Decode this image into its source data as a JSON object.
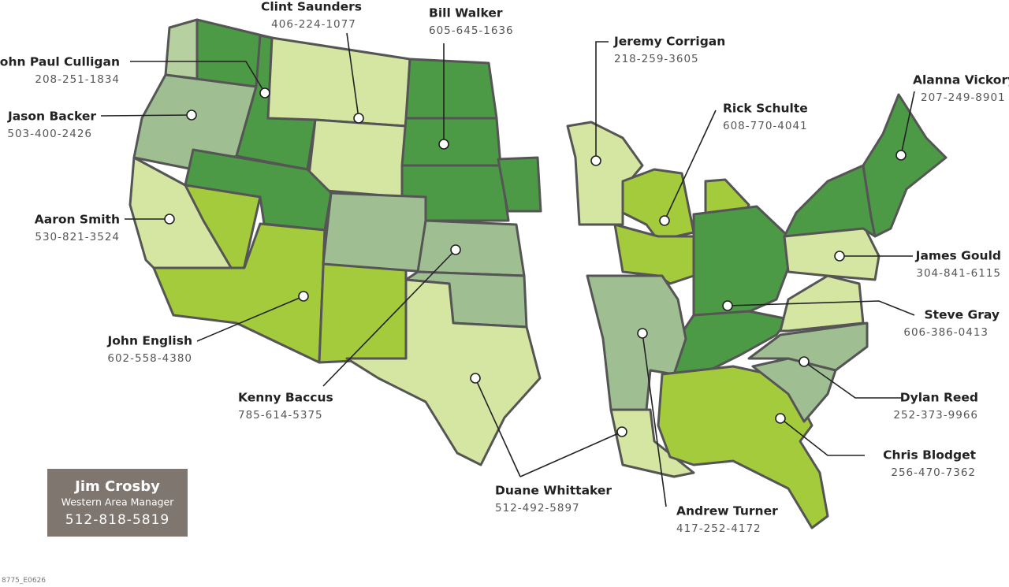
{
  "reps": [
    {
      "name": "Clint Saunders",
      "phone": "406-224-1077"
    },
    {
      "name": "Bill Walker",
      "phone": "605-645-1636"
    },
    {
      "name": "John Paul Culligan",
      "phone": "208-251-1834"
    },
    {
      "name": "Jason Backer",
      "phone": "503-400-2426"
    },
    {
      "name": "Aaron Smith",
      "phone": "530-821-3524"
    },
    {
      "name": "John English",
      "phone": "602-558-4380"
    },
    {
      "name": "Kenny Baccus",
      "phone": "785-614-5375"
    },
    {
      "name": "Duane Whittaker",
      "phone": "512-492-5897"
    },
    {
      "name": "Jeremy Corrigan",
      "phone": "218-259-3605"
    },
    {
      "name": "Rick Schulte",
      "phone": "608-770-4041"
    },
    {
      "name": "Alanna Vickory",
      "phone": "207-249-8901"
    },
    {
      "name": "James Gould",
      "phone": "304-841-6115"
    },
    {
      "name": "Steve Gray",
      "phone": "606-386-0413"
    },
    {
      "name": "Dylan Reed",
      "phone": "252-373-9966"
    },
    {
      "name": "Chris Blodget",
      "phone": "256-470-7362"
    },
    {
      "name": "Andrew Turner",
      "phone": "417-252-4172"
    }
  ],
  "manager": {
    "name": "Jim Crosby",
    "title": "Western Area Manager",
    "phone": "512-818-5819"
  },
  "code": "8775_E0626"
}
